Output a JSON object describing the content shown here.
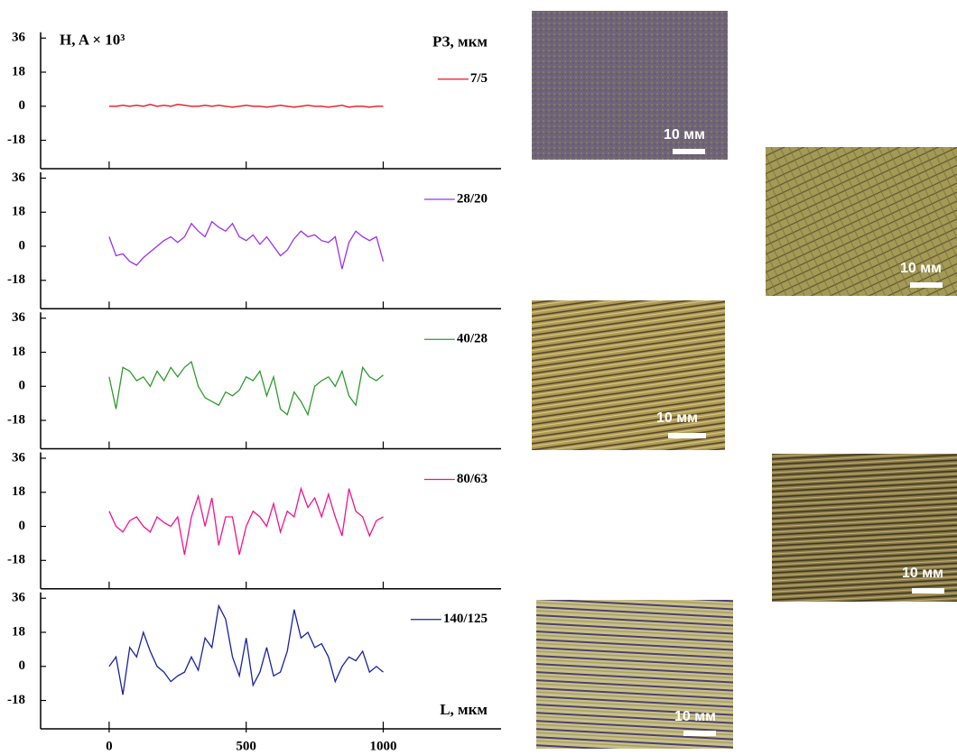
{
  "chart_data": [
    {
      "type": "line",
      "y_label": "H, A × 10³",
      "legend_title": "РЗ, мкм",
      "x": [
        0,
        25,
        50,
        75,
        100,
        125,
        150,
        175,
        200,
        225,
        250,
        275,
        300,
        325,
        350,
        375,
        400,
        425,
        450,
        475,
        500,
        525,
        550,
        575,
        600,
        625,
        650,
        675,
        700,
        725,
        750,
        775,
        800,
        825,
        850,
        875,
        900,
        925,
        950,
        975,
        1000
      ],
      "xlim": [
        -250,
        1430
      ],
      "xticks": [
        0,
        500,
        1000
      ],
      "ylim": [
        -33,
        41
      ],
      "yticks": [
        36,
        18,
        0,
        -18
      ],
      "series": [
        {
          "name": "7/5",
          "color": "#e8141e",
          "values": [
            0,
            0,
            0.5,
            0,
            0.5,
            0,
            1,
            0,
            0.5,
            0,
            1,
            0.5,
            0,
            0,
            0.5,
            0,
            0.5,
            0,
            -0.5,
            0,
            0.5,
            0,
            0,
            -0.5,
            0,
            0.5,
            0,
            -0.5,
            0,
            0.5,
            0,
            0,
            -0.5,
            0,
            0.5,
            -0.5,
            0,
            0,
            -0.5,
            0,
            0
          ]
        }
      ]
    },
    {
      "type": "line",
      "x": [
        0,
        25,
        50,
        75,
        100,
        125,
        150,
        175,
        200,
        225,
        250,
        275,
        300,
        325,
        350,
        375,
        400,
        425,
        450,
        475,
        500,
        525,
        550,
        575,
        600,
        625,
        650,
        675,
        700,
        725,
        750,
        775,
        800,
        825,
        850,
        875,
        900,
        925,
        950,
        975,
        1000
      ],
      "xlim": [
        -250,
        1430
      ],
      "xticks": [
        0,
        500,
        1000
      ],
      "ylim": [
        -33,
        41
      ],
      "yticks": [
        36,
        18,
        0,
        -18
      ],
      "series": [
        {
          "name": "28/20",
          "color": "#9b30f0",
          "values": [
            5,
            -5,
            -4,
            -8,
            -10,
            -6,
            -3,
            0,
            3,
            5,
            2,
            5,
            12,
            8,
            5,
            13,
            10,
            8,
            12,
            5,
            3,
            6,
            1,
            5,
            0,
            -5,
            -2,
            4,
            8,
            5,
            6,
            3,
            2,
            5,
            -12,
            2,
            8,
            5,
            3,
            5,
            -8
          ]
        }
      ]
    },
    {
      "type": "line",
      "x": [
        0,
        25,
        50,
        75,
        100,
        125,
        150,
        175,
        200,
        225,
        250,
        275,
        300,
        325,
        350,
        375,
        400,
        425,
        450,
        475,
        500,
        525,
        550,
        575,
        600,
        625,
        650,
        675,
        700,
        725,
        750,
        775,
        800,
        825,
        850,
        875,
        900,
        925,
        950,
        975,
        1000
      ],
      "xlim": [
        -250,
        1430
      ],
      "xticks": [
        0,
        500,
        1000
      ],
      "ylim": [
        -33,
        41
      ],
      "yticks": [
        36,
        18,
        0,
        -18
      ],
      "series": [
        {
          "name": "40/28",
          "color": "#2e9b2e",
          "values": [
            5,
            -12,
            10,
            8,
            3,
            5,
            0,
            8,
            3,
            10,
            5,
            10,
            13,
            0,
            -6,
            -8,
            -10,
            -3,
            -5,
            -2,
            5,
            3,
            8,
            -5,
            5,
            -12,
            -15,
            -3,
            -8,
            -15,
            0,
            3,
            5,
            0,
            8,
            -5,
            -10,
            10,
            5,
            3,
            6
          ]
        }
      ]
    },
    {
      "type": "line",
      "x": [
        0,
        25,
        50,
        75,
        100,
        125,
        150,
        175,
        200,
        225,
        250,
        275,
        300,
        325,
        350,
        375,
        400,
        425,
        450,
        475,
        500,
        525,
        550,
        575,
        600,
        625,
        650,
        675,
        700,
        725,
        750,
        775,
        800,
        825,
        850,
        875,
        900,
        925,
        950,
        975,
        1000
      ],
      "xlim": [
        -250,
        1430
      ],
      "xticks": [
        0,
        500,
        1000
      ],
      "ylim": [
        -33,
        41
      ],
      "yticks": [
        36,
        18,
        0,
        -18
      ],
      "series": [
        {
          "name": "80/63",
          "color": "#f0148c",
          "values": [
            8,
            0,
            -3,
            3,
            5,
            0,
            -3,
            5,
            2,
            0,
            5,
            -15,
            5,
            16,
            0,
            15,
            -10,
            5,
            5,
            -15,
            0,
            8,
            5,
            0,
            12,
            -3,
            8,
            5,
            20,
            10,
            15,
            5,
            17,
            5,
            -5,
            20,
            8,
            5,
            -5,
            3,
            5
          ]
        }
      ]
    },
    {
      "type": "line",
      "x_label": "L, мкм",
      "x": [
        0,
        25,
        50,
        75,
        100,
        125,
        150,
        175,
        200,
        225,
        250,
        275,
        300,
        325,
        350,
        375,
        400,
        425,
        450,
        475,
        500,
        525,
        550,
        575,
        600,
        625,
        650,
        675,
        700,
        725,
        750,
        775,
        800,
        825,
        850,
        875,
        900,
        925,
        950,
        975,
        1000
      ],
      "xlim": [
        -250,
        1430
      ],
      "xticks": [
        0,
        500,
        1000
      ],
      "ylim": [
        -33,
        41
      ],
      "yticks": [
        36,
        18,
        0,
        -18
      ],
      "series": [
        {
          "name": "140/125",
          "color": "#1a22a0",
          "values": [
            0,
            5,
            -15,
            10,
            5,
            18,
            8,
            0,
            -3,
            -8,
            -5,
            -3,
            5,
            -2,
            15,
            10,
            32,
            25,
            5,
            -5,
            15,
            -10,
            -3,
            10,
            -5,
            -3,
            8,
            30,
            15,
            18,
            10,
            12,
            5,
            -8,
            0,
            5,
            3,
            8,
            -3,
            0,
            -3
          ]
        }
      ]
    }
  ],
  "micrographs": [
    {
      "scale_label": "10 мм"
    },
    {
      "scale_label": "10 мм"
    },
    {
      "scale_label": "10 мм"
    },
    {
      "scale_label": "10 мм"
    },
    {
      "scale_label": "10 мм"
    }
  ]
}
